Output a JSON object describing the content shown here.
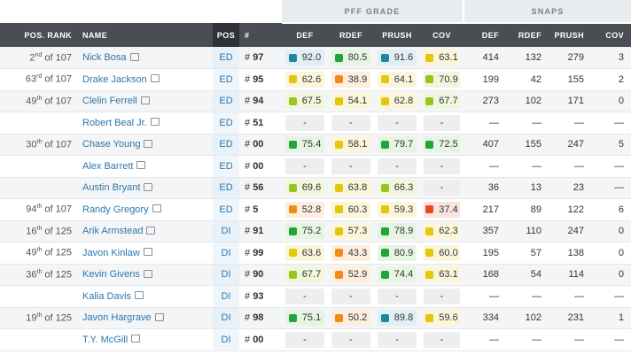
{
  "groups": {
    "pff_grade": "PFF GRADE",
    "snaps": "SNAPS"
  },
  "columns": {
    "rank": "POS. RANK",
    "name": "NAME",
    "pos": "POS",
    "num": "#",
    "def": "DEF",
    "rdef": "RDEF",
    "prush": "PRUSH",
    "cov": "COV",
    "s_def": "DEF",
    "s_rdef": "RDEF",
    "s_prush": "PRUSH",
    "s_cov": "COV"
  },
  "grade_colors": {
    "green": "#1ea53b",
    "lime": "#99c61e",
    "yellow": "#e3c70c",
    "orange": "#f08b16",
    "red": "#e8471f",
    "blue": "#1c87a0"
  },
  "rows": [
    {
      "rank_n": "2",
      "rank_suf": "nd",
      "rank_of": "of 107",
      "name": "Nick Bosa",
      "pos": "ED",
      "num": "97",
      "def": {
        "v": "92.0",
        "c": "blue"
      },
      "rdef": {
        "v": "80.5",
        "c": "green"
      },
      "prush": {
        "v": "91.6",
        "c": "blue"
      },
      "cov": {
        "v": "63.1",
        "c": "yellow"
      },
      "s_def": "414",
      "s_rdef": "132",
      "s_prush": "279",
      "s_cov": "3"
    },
    {
      "rank_n": "63",
      "rank_suf": "rd",
      "rank_of": "of 107",
      "name": "Drake Jackson",
      "pos": "ED",
      "num": "95",
      "def": {
        "v": "62.6",
        "c": "yellow"
      },
      "rdef": {
        "v": "38.9",
        "c": "orange"
      },
      "prush": {
        "v": "64.1",
        "c": "yellow"
      },
      "cov": {
        "v": "70.9",
        "c": "lime"
      },
      "s_def": "199",
      "s_rdef": "42",
      "s_prush": "155",
      "s_cov": "2"
    },
    {
      "rank_n": "49",
      "rank_suf": "th",
      "rank_of": "of 107",
      "name": "Clelin Ferrell",
      "pos": "ED",
      "num": "94",
      "def": {
        "v": "67.5",
        "c": "lime"
      },
      "rdef": {
        "v": "54.1",
        "c": "yellow"
      },
      "prush": {
        "v": "62.8",
        "c": "yellow"
      },
      "cov": {
        "v": "67.7",
        "c": "lime"
      },
      "s_def": "273",
      "s_rdef": "102",
      "s_prush": "171",
      "s_cov": "0"
    },
    {
      "rank_n": "",
      "rank_suf": "",
      "rank_of": "",
      "name": "Robert Beal Jr.",
      "pos": "ED",
      "num": "51",
      "def": {
        "v": "-",
        "c": "none"
      },
      "rdef": {
        "v": "-",
        "c": "none"
      },
      "prush": {
        "v": "-",
        "c": "none"
      },
      "cov": {
        "v": "-",
        "c": "none"
      },
      "s_def": "—",
      "s_rdef": "—",
      "s_prush": "—",
      "s_cov": "—"
    },
    {
      "rank_n": "30",
      "rank_suf": "th",
      "rank_of": "of 107",
      "name": "Chase Young",
      "pos": "ED",
      "num": "00",
      "def": {
        "v": "75.4",
        "c": "green"
      },
      "rdef": {
        "v": "58.1",
        "c": "yellow"
      },
      "prush": {
        "v": "79.7",
        "c": "green"
      },
      "cov": {
        "v": "72.5",
        "c": "green"
      },
      "s_def": "407",
      "s_rdef": "155",
      "s_prush": "247",
      "s_cov": "5"
    },
    {
      "rank_n": "",
      "rank_suf": "",
      "rank_of": "",
      "name": "Alex Barrett",
      "pos": "ED",
      "num": "00",
      "def": {
        "v": "-",
        "c": "none"
      },
      "rdef": {
        "v": "-",
        "c": "none"
      },
      "prush": {
        "v": "-",
        "c": "none"
      },
      "cov": {
        "v": "-",
        "c": "none"
      },
      "s_def": "—",
      "s_rdef": "—",
      "s_prush": "—",
      "s_cov": "—"
    },
    {
      "rank_n": "",
      "rank_suf": "",
      "rank_of": "",
      "name": "Austin Bryant",
      "pos": "ED",
      "num": "56",
      "def": {
        "v": "69.6",
        "c": "lime"
      },
      "rdef": {
        "v": "63.8",
        "c": "yellow"
      },
      "prush": {
        "v": "66.3",
        "c": "lime"
      },
      "cov": {
        "v": "-",
        "c": "none"
      },
      "s_def": "36",
      "s_rdef": "13",
      "s_prush": "23",
      "s_cov": "—"
    },
    {
      "rank_n": "94",
      "rank_suf": "th",
      "rank_of": "of 107",
      "name": "Randy Gregory",
      "pos": "ED",
      "num": "5",
      "def": {
        "v": "52.8",
        "c": "orange"
      },
      "rdef": {
        "v": "60.3",
        "c": "yellow"
      },
      "prush": {
        "v": "59.3",
        "c": "yellow"
      },
      "cov": {
        "v": "37.4",
        "c": "red"
      },
      "s_def": "217",
      "s_rdef": "89",
      "s_prush": "122",
      "s_cov": "6"
    },
    {
      "rank_n": "16",
      "rank_suf": "th",
      "rank_of": "of 125",
      "name": "Arik Armstead",
      "pos": "DI",
      "num": "91",
      "def": {
        "v": "75.2",
        "c": "green"
      },
      "rdef": {
        "v": "57.3",
        "c": "yellow"
      },
      "prush": {
        "v": "78.9",
        "c": "green"
      },
      "cov": {
        "v": "62.3",
        "c": "yellow"
      },
      "s_def": "357",
      "s_rdef": "110",
      "s_prush": "247",
      "s_cov": "0"
    },
    {
      "rank_n": "49",
      "rank_suf": "th",
      "rank_of": "of 125",
      "name": "Javon Kinlaw",
      "pos": "DI",
      "num": "99",
      "def": {
        "v": "63.6",
        "c": "yellow"
      },
      "rdef": {
        "v": "43.3",
        "c": "orange"
      },
      "prush": {
        "v": "80.9",
        "c": "green"
      },
      "cov": {
        "v": "60.0",
        "c": "yellow"
      },
      "s_def": "195",
      "s_rdef": "57",
      "s_prush": "138",
      "s_cov": "0"
    },
    {
      "rank_n": "36",
      "rank_suf": "th",
      "rank_of": "of 125",
      "name": "Kevin Givens",
      "pos": "DI",
      "num": "90",
      "def": {
        "v": "67.7",
        "c": "lime"
      },
      "rdef": {
        "v": "52.9",
        "c": "orange"
      },
      "prush": {
        "v": "74.4",
        "c": "green"
      },
      "cov": {
        "v": "63.1",
        "c": "yellow"
      },
      "s_def": "168",
      "s_rdef": "54",
      "s_prush": "114",
      "s_cov": "0"
    },
    {
      "rank_n": "",
      "rank_suf": "",
      "rank_of": "",
      "name": "Kalia Davis",
      "pos": "DI",
      "num": "93",
      "def": {
        "v": "-",
        "c": "none"
      },
      "rdef": {
        "v": "-",
        "c": "none"
      },
      "prush": {
        "v": "-",
        "c": "none"
      },
      "cov": {
        "v": "-",
        "c": "none"
      },
      "s_def": "—",
      "s_rdef": "—",
      "s_prush": "—",
      "s_cov": "—"
    },
    {
      "rank_n": "19",
      "rank_suf": "th",
      "rank_of": "of 125",
      "name": "Javon Hargrave",
      "pos": "DI",
      "num": "98",
      "def": {
        "v": "75.1",
        "c": "green"
      },
      "rdef": {
        "v": "50.2",
        "c": "orange"
      },
      "prush": {
        "v": "89.8",
        "c": "blue"
      },
      "cov": {
        "v": "59.6",
        "c": "yellow"
      },
      "s_def": "334",
      "s_rdef": "102",
      "s_prush": "231",
      "s_cov": "1"
    },
    {
      "rank_n": "",
      "rank_suf": "",
      "rank_of": "",
      "name": "T.Y. McGill",
      "pos": "DI",
      "num": "00",
      "def": {
        "v": "-",
        "c": "none"
      },
      "rdef": {
        "v": "-",
        "c": "none"
      },
      "prush": {
        "v": "-",
        "c": "none"
      },
      "cov": {
        "v": "-",
        "c": "none"
      },
      "s_def": "—",
      "s_rdef": "—",
      "s_prush": "—",
      "s_cov": "—"
    }
  ]
}
